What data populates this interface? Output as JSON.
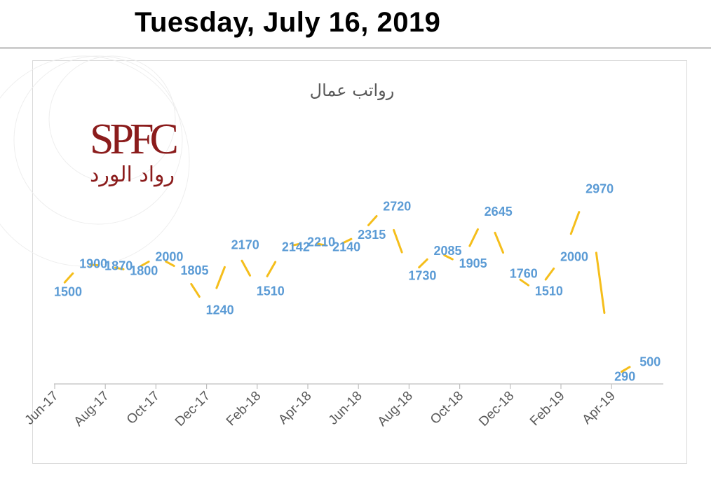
{
  "header": {
    "date": "Tuesday, July 16, 2019"
  },
  "logo": {
    "latin": "SPFC",
    "arabic": "رواد الورد"
  },
  "colors": {
    "line": "#f5be1b",
    "labels": "#5b9bd5",
    "axis": "#bfbfbf",
    "title": "#595959",
    "brand": "#8b1c1c"
  },
  "chart_data": {
    "type": "line",
    "title": "رواتب عمال",
    "tick_labels": [
      "Jun-17",
      "Aug-17",
      "Oct-17",
      "Dec-17",
      "Feb-18",
      "Apr-18",
      "Jun-18",
      "Aug-18",
      "Oct-18",
      "Dec-18",
      "Feb-19",
      "Apr-19"
    ],
    "x": [
      "Jun-17",
      "Jul-17",
      "Aug-17",
      "Sep-17",
      "Oct-17",
      "Nov-17",
      "Dec-17",
      "Jan-18",
      "Feb-18",
      "Mar-18",
      "Apr-18",
      "May-18",
      "Jun-18",
      "Jul-18",
      "Aug-18",
      "Sep-18",
      "Oct-18",
      "Nov-18",
      "Dec-18",
      "Jan-19",
      "Feb-19",
      "Mar-19",
      "Apr-19",
      "May-19"
    ],
    "values": [
      1500,
      1900,
      1870,
      1800,
      2000,
      1805,
      1240,
      2170,
      1510,
      2142,
      2210,
      2140,
      2315,
      2720,
      1730,
      2085,
      1905,
      2645,
      1760,
      1510,
      2000,
      2970,
      290,
      500
    ],
    "labels": [
      "1500",
      "1900",
      "1870",
      "1800",
      "2000",
      "1805",
      "1240",
      "2170",
      "1510",
      "2142",
      "2210",
      "2140",
      "2315",
      "2720",
      "1730",
      "2085",
      "1905",
      "2645",
      "1760",
      "1510",
      "2000",
      "2970",
      "290",
      "500"
    ],
    "grid": false,
    "legend": "none"
  }
}
